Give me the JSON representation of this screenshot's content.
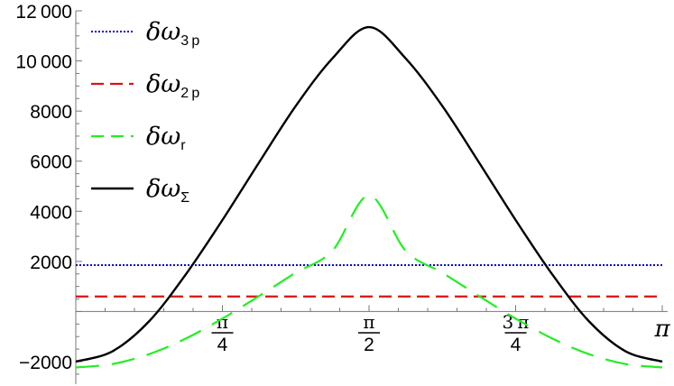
{
  "chart_data": {
    "type": "line",
    "title": "",
    "xlabel": "",
    "ylabel": "",
    "xlim": [
      0,
      3.14159265
    ],
    "ylim": [
      -2900,
      12000
    ],
    "grid": false,
    "legend_position": "top-left",
    "y_ticks": [
      {
        "value": -2000,
        "label": "−2000"
      },
      {
        "value": 2000,
        "label": "2000"
      },
      {
        "value": 4000,
        "label": "4000"
      },
      {
        "value": 6000,
        "label": "6000"
      },
      {
        "value": 8000,
        "label": "8000"
      },
      {
        "value": 10000,
        "label": "10 000"
      },
      {
        "value": 12000,
        "label": "12 000"
      }
    ],
    "x_ticks": [
      {
        "value": 0.785398,
        "numerator": "π",
        "denominator": "4"
      },
      {
        "value": 1.570796,
        "numerator": "π",
        "denominator": "2"
      },
      {
        "value": 2.356194,
        "numerator": "3 π",
        "denominator": "4"
      },
      {
        "value": 3.141593,
        "label": "π"
      }
    ],
    "series": [
      {
        "name": "δω3 p",
        "label_main": "δω",
        "label_sub": "3 p",
        "color": "#0000cc",
        "style": "dotted",
        "x": [
          0,
          3.14159265
        ],
        "y": [
          1850,
          1850
        ]
      },
      {
        "name": "δω2 p",
        "label_main": "δω",
        "label_sub": "2 p",
        "color": "#dd1111",
        "style": "dashed",
        "x": [
          0,
          3.14159265
        ],
        "y": [
          600,
          600
        ]
      },
      {
        "name": "δωr",
        "label_main": "δω",
        "label_sub": "r",
        "color": "#22ee22",
        "style": "long-dashed",
        "x": [
          0,
          0.19635,
          0.392699,
          0.589049,
          0.785398,
          0.981748,
          1.178097,
          1.374447,
          1.570796,
          1.767146,
          1.963495,
          2.159845,
          2.356194,
          2.552544,
          2.748894,
          2.945243,
          3.141593
        ],
        "y": [
          -2230,
          -2096,
          -1701,
          -1078,
          -282,
          618,
          1548,
          2424,
          4630,
          2424,
          1548,
          618,
          -282,
          -1078,
          -1701,
          -2096,
          -2230
        ]
      },
      {
        "name": "δωΣ",
        "label_main": "δω",
        "label_sub": "Σ",
        "color": "#000000",
        "style": "solid",
        "x": [
          0,
          0.19635,
          0.392699,
          0.589049,
          0.785398,
          0.981748,
          1.178097,
          1.374447,
          1.570796,
          1.767146,
          1.963495,
          2.159845,
          2.356194,
          2.552544,
          2.748894,
          2.945243,
          3.141593
        ],
        "y": [
          -2000,
          -1587,
          -390,
          1480,
          3650,
          5950,
          8200,
          10100,
          11350,
          10100,
          8200,
          5950,
          3650,
          1480,
          -390,
          -1587,
          -2000
        ]
      }
    ]
  }
}
